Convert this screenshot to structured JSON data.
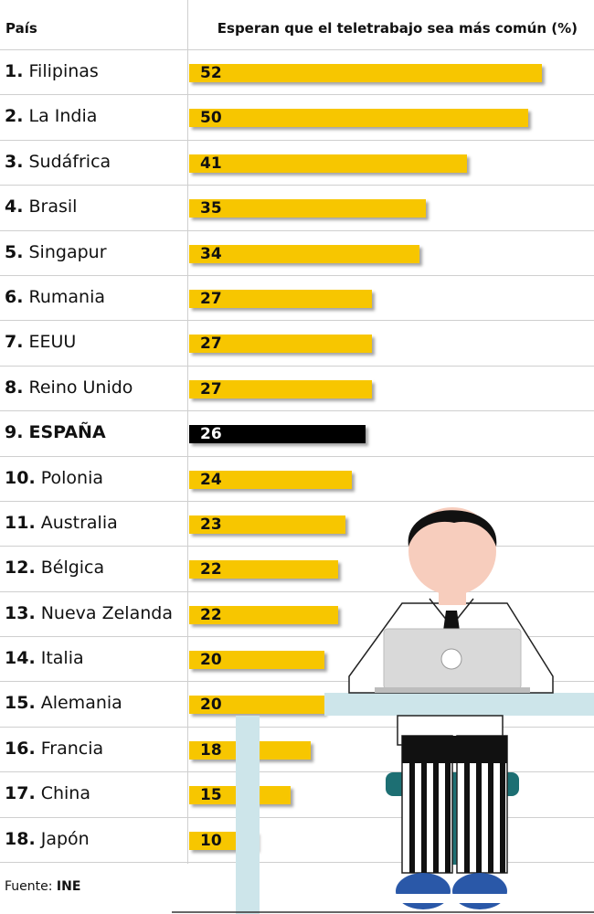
{
  "header": {
    "country_col": "País",
    "value_col": "Esperan que el teletrabajo sea más común (%)"
  },
  "chart_data": {
    "type": "bar",
    "orientation": "horizontal",
    "xlim": [
      0,
      58
    ],
    "rows": [
      {
        "rank": "1.",
        "name": "Filipinas",
        "value": 52
      },
      {
        "rank": "2.",
        "name": "La India",
        "value": 50
      },
      {
        "rank": "3.",
        "name": "Sudáfrica",
        "value": 41
      },
      {
        "rank": "4.",
        "name": "Brasil",
        "value": 35
      },
      {
        "rank": "5.",
        "name": "Singapur",
        "value": 34
      },
      {
        "rank": "6.",
        "name": "Rumania",
        "value": 27
      },
      {
        "rank": "7.",
        "name": "EEUU",
        "value": 27
      },
      {
        "rank": "8.",
        "name": "Reino Unido",
        "value": 27
      },
      {
        "rank": "9.",
        "name": "ESPAÑA",
        "value": 26,
        "highlight": true
      },
      {
        "rank": "10.",
        "name": "Polonia",
        "value": 24
      },
      {
        "rank": "11.",
        "name": "Australia",
        "value": 23
      },
      {
        "rank": "12.",
        "name": "Bélgica",
        "value": 22
      },
      {
        "rank": "13.",
        "name": "Nueva Zelanda",
        "value": 22
      },
      {
        "rank": "14.",
        "name": "Italia",
        "value": 20
      },
      {
        "rank": "15.",
        "name": "Alemania",
        "value": 20
      },
      {
        "rank": "16.",
        "name": "Francia",
        "value": 18
      },
      {
        "rank": "17.",
        "name": "China",
        "value": 15
      },
      {
        "rank": "18.",
        "name": "Japón",
        "value": 10
      }
    ]
  },
  "colors": {
    "bar": "#f7c600",
    "highlight_bar": "#000000",
    "desk": "#cde5ea",
    "skin": "#f7cdbd",
    "teal": "#1d6f73",
    "shoe": "#2a58a8"
  },
  "source": {
    "label": "Fuente:",
    "value": "INE"
  }
}
